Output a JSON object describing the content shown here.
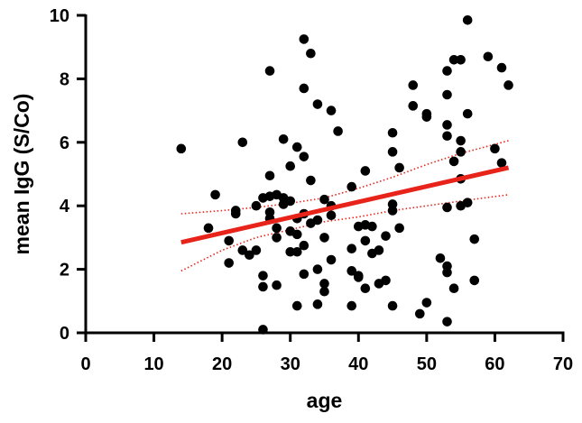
{
  "chart_data": {
    "type": "scatter",
    "xlabel": "age",
    "ylabel": "mean IgG (S/Co)",
    "xlim": [
      0,
      70
    ],
    "ylim": [
      0,
      10
    ],
    "xticks": [
      0,
      10,
      20,
      30,
      40,
      50,
      60,
      70
    ],
    "yticks": [
      0,
      2,
      4,
      6,
      8,
      10
    ],
    "grid": false,
    "colors": {
      "points": "#000000",
      "fit": "#e8231a",
      "ci": "#e8231a"
    },
    "points": [
      [
        14,
        5.8
      ],
      [
        18,
        3.3
      ],
      [
        19,
        4.35
      ],
      [
        21,
        2.2
      ],
      [
        21,
        2.9
      ],
      [
        22,
        3.75
      ],
      [
        22,
        3.85
      ],
      [
        23,
        6.0
      ],
      [
        23,
        2.6
      ],
      [
        24,
        2.45
      ],
      [
        25,
        2.6
      ],
      [
        25,
        4.0
      ],
      [
        26,
        4.25
      ],
      [
        26,
        1.8
      ],
      [
        26,
        1.45
      ],
      [
        26,
        0.1
      ],
      [
        27,
        8.25
      ],
      [
        27,
        4.95
      ],
      [
        27,
        4.3
      ],
      [
        27,
        3.8
      ],
      [
        27,
        3.6
      ],
      [
        28,
        4.35
      ],
      [
        28,
        3.3
      ],
      [
        28,
        3.0
      ],
      [
        28,
        1.5
      ],
      [
        29,
        6.1
      ],
      [
        29,
        4.25
      ],
      [
        29,
        4.05
      ],
      [
        30,
        5.25
      ],
      [
        30,
        4.15
      ],
      [
        30,
        3.2
      ],
      [
        30,
        2.55
      ],
      [
        31,
        5.85
      ],
      [
        31,
        3.6
      ],
      [
        31,
        3.1
      ],
      [
        31,
        2.55
      ],
      [
        31,
        0.85
      ],
      [
        32,
        9.25
      ],
      [
        32,
        7.7
      ],
      [
        32,
        5.55
      ],
      [
        32,
        3.75
      ],
      [
        32,
        2.75
      ],
      [
        32,
        1.85
      ],
      [
        33,
        8.8
      ],
      [
        33,
        4.8
      ],
      [
        33,
        3.45
      ],
      [
        34,
        7.2
      ],
      [
        34,
        3.55
      ],
      [
        34,
        2.0
      ],
      [
        34,
        0.9
      ],
      [
        35,
        4.2
      ],
      [
        35,
        3.0
      ],
      [
        35,
        1.55
      ],
      [
        35,
        1.3
      ],
      [
        36,
        7.0
      ],
      [
        36,
        4.0
      ],
      [
        36,
        3.7
      ],
      [
        36,
        2.3
      ],
      [
        37,
        6.35
      ],
      [
        39,
        4.6
      ],
      [
        39,
        2.65
      ],
      [
        39,
        1.95
      ],
      [
        39,
        0.85
      ],
      [
        40,
        3.35
      ],
      [
        40,
        1.8
      ],
      [
        40,
        1.75
      ],
      [
        41,
        5.1
      ],
      [
        41,
        3.4
      ],
      [
        41,
        2.9
      ],
      [
        41,
        1.4
      ],
      [
        42,
        3.35
      ],
      [
        42,
        2.5
      ],
      [
        43,
        2.6
      ],
      [
        43,
        1.55
      ],
      [
        44,
        3.05
      ],
      [
        44,
        1.65
      ],
      [
        45,
        6.3
      ],
      [
        45,
        5.7
      ],
      [
        45,
        4.05
      ],
      [
        45,
        3.85
      ],
      [
        45,
        0.85
      ],
      [
        46,
        5.2
      ],
      [
        46,
        3.3
      ],
      [
        48,
        7.8
      ],
      [
        48,
        7.15
      ],
      [
        49,
        0.6
      ],
      [
        50,
        6.9
      ],
      [
        50,
        6.8
      ],
      [
        50,
        0.95
      ],
      [
        52,
        2.35
      ],
      [
        53,
        8.25
      ],
      [
        53,
        7.5
      ],
      [
        53,
        6.55
      ],
      [
        53,
        6.2
      ],
      [
        53,
        3.95
      ],
      [
        53,
        2.1
      ],
      [
        53,
        1.9
      ],
      [
        53,
        0.35
      ],
      [
        54,
        8.6
      ],
      [
        54,
        5.4
      ],
      [
        54,
        1.4
      ],
      [
        55,
        8.6
      ],
      [
        55,
        6.05
      ],
      [
        55,
        5.7
      ],
      [
        55,
        4.85
      ],
      [
        55,
        4.0
      ],
      [
        56,
        9.85
      ],
      [
        56,
        6.9
      ],
      [
        56,
        4.1
      ],
      [
        57,
        2.95
      ],
      [
        57,
        1.65
      ],
      [
        59,
        8.7
      ],
      [
        60,
        5.8
      ],
      [
        61,
        8.35
      ],
      [
        61,
        5.35
      ],
      [
        62,
        7.8
      ]
    ],
    "fit_line": {
      "x": [
        14,
        62
      ],
      "y": [
        2.85,
        5.2
      ]
    },
    "ci_upper": {
      "x": [
        14,
        20,
        25,
        30,
        35,
        40,
        45,
        50,
        55,
        62
      ],
      "y": [
        3.75,
        3.85,
        3.95,
        4.08,
        4.25,
        4.55,
        4.9,
        5.3,
        5.65,
        6.05
      ]
    },
    "ci_lower": {
      "x": [
        14,
        20,
        25,
        30,
        35,
        40,
        45,
        50,
        55,
        62
      ],
      "y": [
        1.95,
        2.6,
        3.0,
        3.25,
        3.5,
        3.65,
        3.85,
        4.0,
        4.15,
        4.35
      ]
    }
  }
}
